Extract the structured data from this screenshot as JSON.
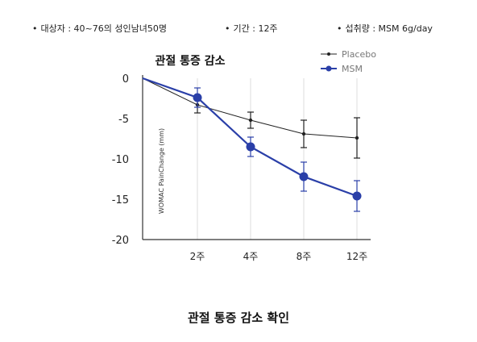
{
  "info": [
    "대상자 : 40~76의 성인남녀50명",
    "기간 : 12주",
    "섭취량 : MSM 6g/day"
  ],
  "caption": "관절 통증 감소 확인",
  "chart_data": {
    "type": "line",
    "title": "관절 통증 감소",
    "xlabel": "",
    "ylabel": "WOMAC PainChange (mm)",
    "categories": [
      "0",
      "2주",
      "4주",
      "8주",
      "12주"
    ],
    "x_tick_labels": [
      "2주",
      "4주",
      "8주",
      "12주"
    ],
    "ylim": [
      -20,
      0
    ],
    "yticks": [
      0,
      -5,
      -10,
      -15,
      -20
    ],
    "grid": "vertical",
    "legend": "top-right",
    "series": [
      {
        "name": "Placebo",
        "color": "#222222",
        "marker": "small-dot",
        "values": [
          0,
          -3.3,
          -5.2,
          -6.9,
          -7.4
        ],
        "errors": [
          0,
          1,
          1,
          1.7,
          2.5
        ]
      },
      {
        "name": "MSM",
        "color": "#2a3fa8",
        "marker": "large-dot",
        "values": [
          0,
          -2.4,
          -8.5,
          -12.2,
          -14.6
        ],
        "errors": [
          0,
          1.2,
          1.2,
          1.8,
          1.9
        ]
      }
    ]
  }
}
